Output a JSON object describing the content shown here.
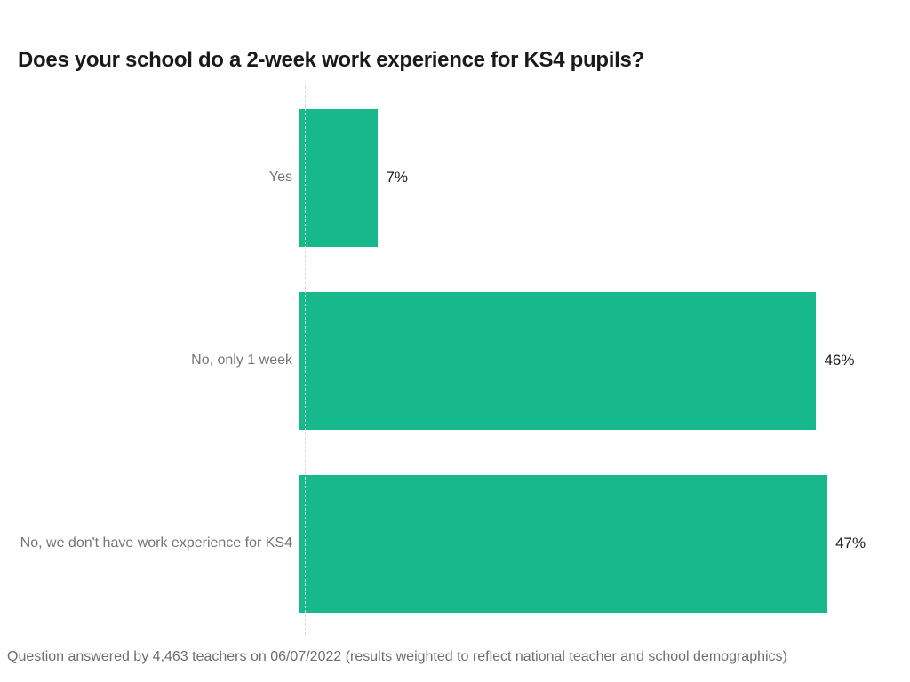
{
  "title": "Does your school do a 2-week work experience for KS4 pupils?",
  "footnote": "Question answered by 4,463 teachers on 06/07/2022 (results weighted to reflect national teacher and school demographics)",
  "colors": {
    "bar": "#16b88c",
    "category_label": "#757575",
    "value_label": "#1d1d1d",
    "axis": "#d9d9d9",
    "title_text": "#1a1a1a",
    "footnote_text": "#6e6e6e"
  },
  "chart_data": {
    "type": "bar",
    "orientation": "horizontal",
    "title": "Does your school do a 2-week work experience for KS4 pupils?",
    "categories": [
      "Yes",
      "No, only 1 week",
      "No, we don't have work experience for KS4"
    ],
    "values": [
      7,
      46,
      47
    ],
    "value_labels": [
      "7%",
      "46%",
      "47%"
    ],
    "xlabel": "",
    "ylabel": "",
    "xlim": [
      0,
      50
    ],
    "grid": false,
    "legend": false
  }
}
